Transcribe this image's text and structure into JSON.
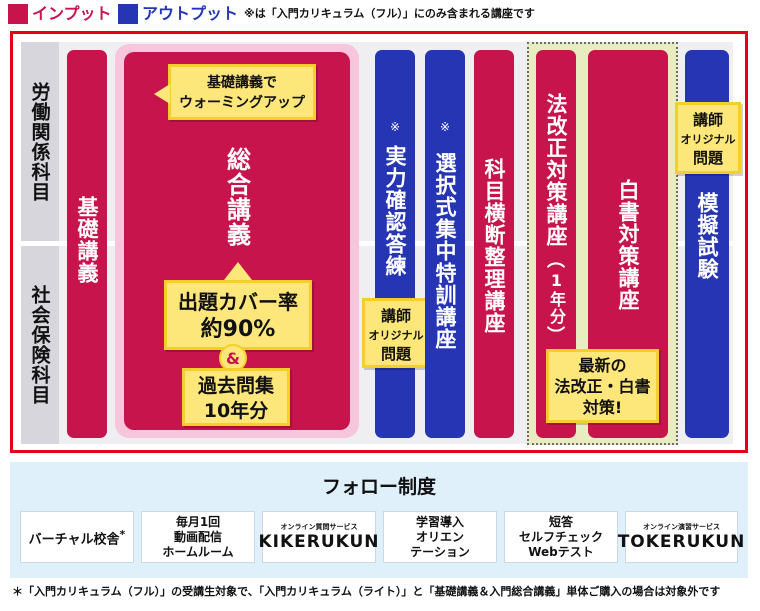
{
  "legend": {
    "input_label": "インプット",
    "output_label": "アウトプット",
    "input_color": "#c8144c",
    "output_color": "#2535b4",
    "note": "※は「入門カリキュラム（フル）」にのみ含まれる講座です"
  },
  "subjects": {
    "labor": "労働関係科目",
    "social": "社会保険科目"
  },
  "courses": {
    "kiso": "基礎講義",
    "sogo": {
      "title": "総合講義",
      "warmup": [
        "基礎講義で",
        "ウォーミングアップ"
      ],
      "coverage": [
        "出題カバー率",
        "約90%"
      ],
      "amp": "&",
      "past": [
        "過去問集",
        "10年分"
      ]
    },
    "jitsuryoku": {
      "mark": "※",
      "title": "実力確認答練"
    },
    "sentaku": {
      "mark": "※",
      "title": "選択式集中特訓講座"
    },
    "kamoku": "科目横断整理講座",
    "hokaisei": {
      "title": "法改正対策講座",
      "count": "1年分"
    },
    "hakusho": "白書対策講座",
    "newest": [
      "最新の",
      "法改正・白書",
      "対策!"
    ],
    "mogi": "模擬試験",
    "original": [
      "講師",
      "オリジナル",
      "問題"
    ]
  },
  "follow": {
    "title": "フォロー制度",
    "items": [
      {
        "label": "バーチャル校舎",
        "mark": "*"
      },
      {
        "lines": [
          "毎月1回",
          "動画配信",
          "ホームルーム"
        ]
      },
      {
        "caption": "オンライン質問サービス",
        "logo": "KIKERUKUN"
      },
      {
        "lines": [
          "学習導入",
          "オリエン",
          "テーション"
        ]
      },
      {
        "lines": [
          "短答",
          "セルフチェック",
          "Webテスト"
        ]
      },
      {
        "caption": "オンライン演習サービス",
        "logo": "TOKERUKUN"
      }
    ]
  },
  "footnote": "＊「入門カリキュラム（フル）」の受講生対象で、「入門カリキュラム（ライト）」と「基礎講義＆入門総合講義」単体ご購入の場合は対象外です"
}
